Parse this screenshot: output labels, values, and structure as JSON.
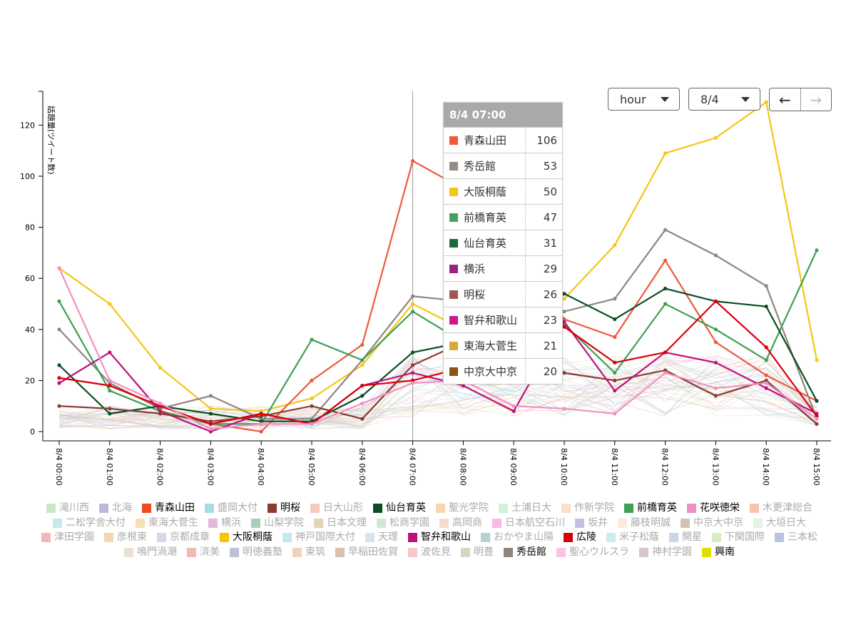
{
  "controls": {
    "unit_value": "hour",
    "date_value": "8/4",
    "prev_label": "←",
    "next_label": "→"
  },
  "tooltip": {
    "title": "8/4 07:00",
    "rows": [
      {
        "name": "青森山田",
        "value": "106",
        "color": "#ee5a3a"
      },
      {
        "name": "秀岳館",
        "value": "53",
        "color": "#968b85"
      },
      {
        "name": "大阪桐蔭",
        "value": "50",
        "color": "#f5c518"
      },
      {
        "name": "前橋育英",
        "value": "47",
        "color": "#41a35a"
      },
      {
        "name": "仙台育英",
        "value": "31",
        "color": "#1b6b3a"
      },
      {
        "name": "横浜",
        "value": "29",
        "color": "#9b2189"
      },
      {
        "name": "明桜",
        "value": "26",
        "color": "#a2564d"
      },
      {
        "name": "智弁和歌山",
        "value": "23",
        "color": "#c71b8e"
      },
      {
        "name": "東海大菅生",
        "value": "21",
        "color": "#dba83a"
      },
      {
        "name": "中京大中京",
        "value": "20",
        "color": "#8b5212"
      }
    ]
  },
  "chart_data": {
    "type": "line",
    "x": [
      "8/4 00:00",
      "8/4 01:00",
      "8/4 02:00",
      "8/4 03:00",
      "8/4 04:00",
      "8/4 05:00",
      "8/4 06:00",
      "8/4 07:00",
      "8/4 08:00",
      "8/4 09:00",
      "8/4 10:00",
      "8/4 11:00",
      "8/4 12:00",
      "8/4 13:00",
      "8/4 14:00",
      "8/4 15:00"
    ],
    "ylabel": "話題量(ツイート数)",
    "ylim": [
      0,
      130
    ],
    "yticks": [
      0,
      20,
      40,
      60,
      80,
      100,
      120
    ],
    "hover_x": "8/4 07:00",
    "series": [
      {
        "name": "大阪桐蔭",
        "color": "#f5c518",
        "values": [
          64,
          50,
          25,
          9,
          8,
          13,
          26,
          50,
          40,
          55,
          52,
          73,
          109,
          115,
          129,
          28
        ]
      },
      {
        "name": "青森山田",
        "color": "#ee5a3a",
        "values": [
          21,
          18,
          10,
          3,
          0,
          20,
          34,
          106,
          95,
          78,
          44,
          37,
          67,
          35,
          22,
          12
        ]
      },
      {
        "name": "秀岳館",
        "color": "#8f8580",
        "values": [
          40,
          19,
          9,
          14,
          5,
          5,
          28,
          53,
          51,
          45,
          47,
          52,
          79,
          69,
          57,
          5
        ]
      },
      {
        "name": "前橋育英",
        "color": "#3f9f52",
        "values": [
          51,
          16,
          8,
          3,
          3,
          36,
          28,
          47,
          35,
          40,
          42,
          23,
          50,
          40,
          28,
          71
        ]
      },
      {
        "name": "仙台育英",
        "color": "#0a4e22",
        "values": [
          26,
          7,
          10,
          7,
          4,
          4,
          14,
          31,
          35,
          35,
          54,
          44,
          56,
          51,
          49,
          12
        ]
      },
      {
        "name": "智弁和歌山",
        "color": "#c0107a",
        "values": [
          19,
          31,
          8,
          0,
          7,
          3,
          18,
          23,
          18,
          8,
          43,
          16,
          31,
          27,
          17,
          7
        ]
      },
      {
        "name": "明桜",
        "color": "#8b3a30",
        "values": [
          10,
          9,
          7,
          4,
          6,
          10,
          5,
          26,
          35,
          33,
          23,
          20,
          24,
          14,
          20,
          3
        ]
      },
      {
        "name": "広陵",
        "color": "#d9000d",
        "values": [
          21,
          18,
          10,
          3,
          7,
          3,
          18,
          20,
          25,
          30,
          41,
          27,
          31,
          51,
          33,
          6
        ]
      },
      {
        "name": "花咲徳栄",
        "color": "#f090c0",
        "values": [
          64,
          20,
          11,
          1,
          3,
          3,
          11,
          19,
          20,
          10,
          9,
          7,
          23,
          17,
          19,
          5
        ]
      }
    ],
    "legend": [
      {
        "name": "滝川西",
        "color": "#c9e8c4",
        "active": false
      },
      {
        "name": "北海",
        "color": "#c2b5dc",
        "active": false
      },
      {
        "name": "青森山田",
        "color": "#ee4b22",
        "active": true
      },
      {
        "name": "盛岡大付",
        "color": "#a7dbe6",
        "active": false
      },
      {
        "name": "明桜",
        "color": "#8b3a30",
        "active": true
      },
      {
        "name": "日大山形",
        "color": "#f7cbbc",
        "active": false
      },
      {
        "name": "仙台育英",
        "color": "#0a4e22",
        "active": true
      },
      {
        "name": "聖光学院",
        "color": "#fad5b0",
        "active": false
      },
      {
        "name": "土浦日大",
        "color": "#d3f0dc",
        "active": false
      },
      {
        "name": "作新学院",
        "color": "#f9e0c8",
        "active": false
      },
      {
        "name": "前橋育英",
        "color": "#3f9f52",
        "active": true
      },
      {
        "name": "花咲徳栄",
        "color": "#f090c0",
        "active": true
      },
      {
        "name": "木更津総合",
        "color": "#f7c5ab",
        "active": false
      },
      {
        "name": "二松学舎大付",
        "color": "#c8e8eb",
        "active": false
      },
      {
        "name": "東海大菅生",
        "color": "#f7dfb0",
        "active": false
      },
      {
        "name": "横浜",
        "color": "#dfb8dc",
        "active": false
      },
      {
        "name": "山梨学院",
        "color": "#a9cfb7",
        "active": false
      },
      {
        "name": "日本文理",
        "color": "#e3d4b3",
        "active": false
      },
      {
        "name": "松商学園",
        "color": "#cfe8d4",
        "active": false
      },
      {
        "name": "高岡商",
        "color": "#f5dccc",
        "active": false
      },
      {
        "name": "日本航空石川",
        "color": "#f7b9e4",
        "active": false
      },
      {
        "name": "坂井",
        "color": "#c3c0e2",
        "active": false
      },
      {
        "name": "藤枝明誠",
        "color": "#faeadd",
        "active": false
      },
      {
        "name": "中京大中京",
        "color": "#d4c2b2",
        "active": false
      },
      {
        "name": "大垣日大",
        "color": "#e2f2e8",
        "active": false
      },
      {
        "name": "津田学園",
        "color": "#f2b7b7",
        "active": false
      },
      {
        "name": "彦根東",
        "color": "#efd9b0",
        "active": false
      },
      {
        "name": "京都成章",
        "color": "#d8d5ec",
        "active": false
      },
      {
        "name": "大阪桐蔭",
        "color": "#f7c400",
        "active": true
      },
      {
        "name": "神戸国際大付",
        "color": "#c6e5f5",
        "active": false
      },
      {
        "name": "天理",
        "color": "#d8e3f2",
        "active": false
      },
      {
        "name": "智弁和歌山",
        "color": "#c0107a",
        "active": true
      },
      {
        "name": "おかやま山陽",
        "color": "#b9cfd3",
        "active": false
      },
      {
        "name": "広陵",
        "color": "#d9000d",
        "active": true
      },
      {
        "name": "米子松蔭",
        "color": "#cfeaef",
        "active": false
      },
      {
        "name": "開星",
        "color": "#c9d7eb",
        "active": false
      },
      {
        "name": "下関国際",
        "color": "#d8ecc3",
        "active": false
      },
      {
        "name": "三本松",
        "color": "#b7c4dc",
        "active": false
      },
      {
        "name": "鳴門渦潮",
        "color": "#e8e0d2",
        "active": false
      },
      {
        "name": "済美",
        "color": "#f5b7b2",
        "active": false
      },
      {
        "name": "明徳義塾",
        "color": "#bcc1d8",
        "active": false
      },
      {
        "name": "東筑",
        "color": "#f2d1bb",
        "active": false
      },
      {
        "name": "早稲田佐賀",
        "color": "#d8c1ad",
        "active": false
      },
      {
        "name": "波佐見",
        "color": "#f7c6c6",
        "active": false
      },
      {
        "name": "明豊",
        "color": "#d5d8c1",
        "active": false
      },
      {
        "name": "秀岳館",
        "color": "#8f8580",
        "active": true
      },
      {
        "name": "聖心ウルスラ",
        "color": "#f7c4e5",
        "active": false
      },
      {
        "name": "神村学園",
        "color": "#d6c5cf",
        "active": false
      },
      {
        "name": "興南",
        "color": "#dede00",
        "active": true
      }
    ]
  }
}
